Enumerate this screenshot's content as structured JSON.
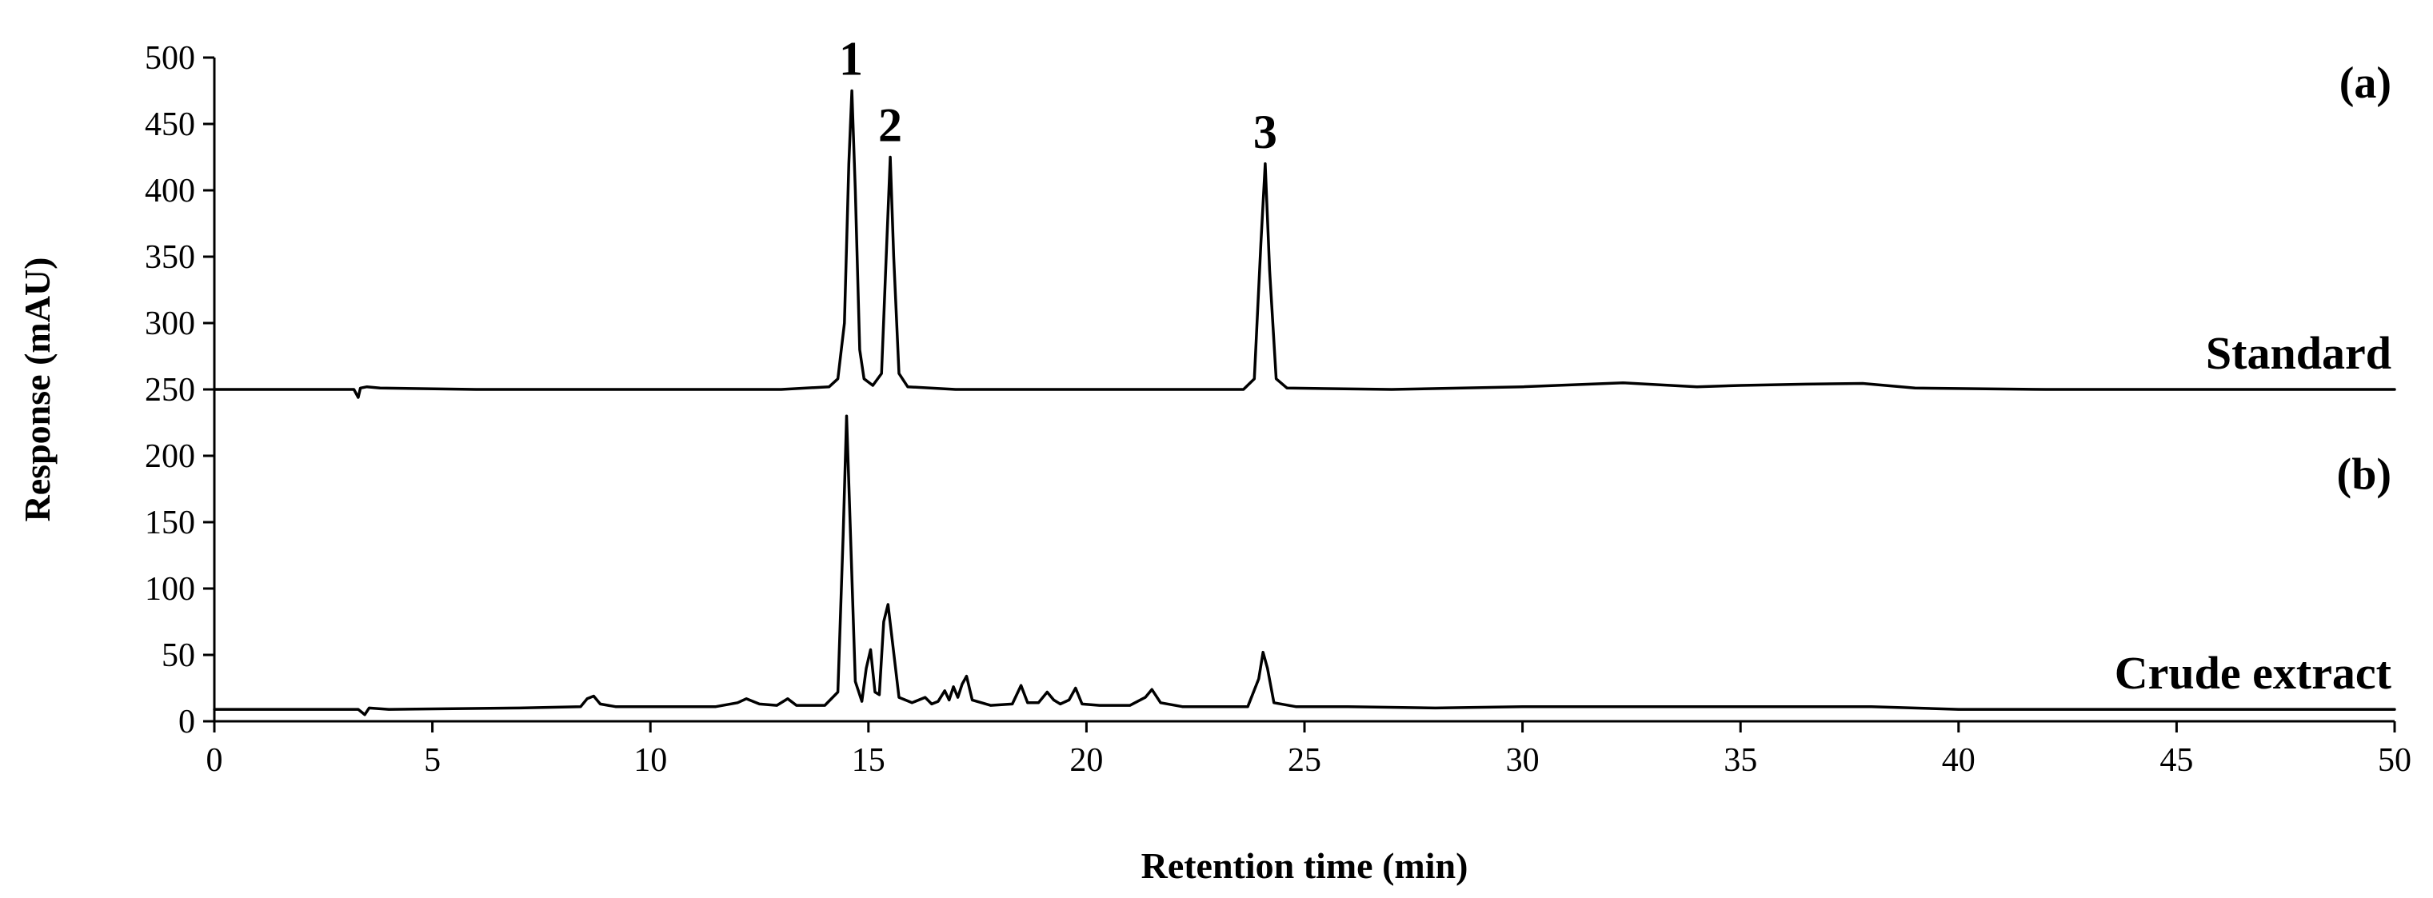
{
  "chart_data": {
    "type": "line",
    "xlabel": "Retention time (min)",
    "ylabel": "Response (mAU)",
    "xlim": [
      0,
      50
    ],
    "ylim": [
      0,
      500
    ],
    "x_ticks": [
      0,
      5,
      10,
      15,
      20,
      25,
      30,
      35,
      40,
      45,
      50
    ],
    "y_ticks": [
      0,
      50,
      100,
      150,
      200,
      250,
      300,
      350,
      400,
      450,
      500
    ],
    "grid": false,
    "legend": "none",
    "panels": [
      {
        "label": "(a)",
        "name": "Standard"
      },
      {
        "label": "(b)",
        "name": "Crude extract"
      }
    ],
    "peak_labels": [
      {
        "text": "1",
        "x": 14.6,
        "y": 475
      },
      {
        "text": "2",
        "x": 15.5,
        "y": 425
      },
      {
        "text": "3",
        "x": 24.1,
        "y": 420
      }
    ],
    "series": [
      {
        "name": "Standard",
        "baseline": 250,
        "points": [
          [
            0,
            250
          ],
          [
            3.2,
            250
          ],
          [
            3.3,
            244
          ],
          [
            3.35,
            251
          ],
          [
            3.5,
            252
          ],
          [
            3.8,
            251
          ],
          [
            6,
            250
          ],
          [
            10,
            250
          ],
          [
            13,
            250
          ],
          [
            14.1,
            252
          ],
          [
            14.3,
            258
          ],
          [
            14.45,
            300
          ],
          [
            14.55,
            420
          ],
          [
            14.62,
            475
          ],
          [
            14.7,
            400
          ],
          [
            14.8,
            280
          ],
          [
            14.9,
            258
          ],
          [
            15.1,
            253
          ],
          [
            15.3,
            262
          ],
          [
            15.42,
            360
          ],
          [
            15.5,
            425
          ],
          [
            15.58,
            350
          ],
          [
            15.7,
            262
          ],
          [
            15.9,
            252
          ],
          [
            17,
            250
          ],
          [
            23.6,
            250
          ],
          [
            23.85,
            258
          ],
          [
            24.0,
            360
          ],
          [
            24.1,
            420
          ],
          [
            24.2,
            340
          ],
          [
            24.35,
            258
          ],
          [
            24.6,
            251
          ],
          [
            27,
            250
          ],
          [
            30,
            252
          ],
          [
            32.3,
            255
          ],
          [
            34,
            252
          ],
          [
            35,
            253
          ],
          [
            36.5,
            254
          ],
          [
            37.8,
            254.5
          ],
          [
            39,
            251
          ],
          [
            42,
            250
          ],
          [
            46,
            250
          ],
          [
            50,
            250
          ]
        ]
      },
      {
        "name": "Crude extract",
        "baseline": 9,
        "points": [
          [
            0,
            9
          ],
          [
            3.3,
            9
          ],
          [
            3.45,
            5
          ],
          [
            3.55,
            10
          ],
          [
            4,
            9
          ],
          [
            7,
            10
          ],
          [
            8.4,
            11
          ],
          [
            8.55,
            17
          ],
          [
            8.7,
            19
          ],
          [
            8.85,
            13
          ],
          [
            9.2,
            11
          ],
          [
            11.5,
            11
          ],
          [
            12.0,
            14
          ],
          [
            12.2,
            17
          ],
          [
            12.5,
            13
          ],
          [
            12.9,
            12
          ],
          [
            13.15,
            17
          ],
          [
            13.35,
            12
          ],
          [
            14.0,
            12
          ],
          [
            14.3,
            22
          ],
          [
            14.42,
            140
          ],
          [
            14.5,
            230
          ],
          [
            14.58,
            150
          ],
          [
            14.7,
            30
          ],
          [
            14.85,
            15
          ],
          [
            14.95,
            40
          ],
          [
            15.05,
            54
          ],
          [
            15.15,
            22
          ],
          [
            15.25,
            20
          ],
          [
            15.35,
            75
          ],
          [
            15.45,
            88
          ],
          [
            15.55,
            60
          ],
          [
            15.7,
            18
          ],
          [
            16.0,
            14
          ],
          [
            16.3,
            18
          ],
          [
            16.45,
            13
          ],
          [
            16.6,
            15
          ],
          [
            16.75,
            23
          ],
          [
            16.85,
            16
          ],
          [
            16.95,
            26
          ],
          [
            17.05,
            18
          ],
          [
            17.15,
            28
          ],
          [
            17.25,
            34
          ],
          [
            17.38,
            16
          ],
          [
            17.8,
            12
          ],
          [
            18.3,
            13
          ],
          [
            18.5,
            27
          ],
          [
            18.65,
            14
          ],
          [
            18.9,
            14
          ],
          [
            19.1,
            22
          ],
          [
            19.25,
            16
          ],
          [
            19.4,
            13
          ],
          [
            19.6,
            16
          ],
          [
            19.75,
            25
          ],
          [
            19.9,
            13
          ],
          [
            20.3,
            12
          ],
          [
            21.0,
            12
          ],
          [
            21.35,
            18
          ],
          [
            21.5,
            24
          ],
          [
            21.7,
            14
          ],
          [
            22.2,
            11
          ],
          [
            23.7,
            11
          ],
          [
            23.95,
            32
          ],
          [
            24.05,
            52
          ],
          [
            24.15,
            40
          ],
          [
            24.3,
            14
          ],
          [
            24.8,
            11
          ],
          [
            26,
            11
          ],
          [
            28,
            10
          ],
          [
            30,
            11
          ],
          [
            35,
            11
          ],
          [
            38,
            11
          ],
          [
            40,
            9
          ],
          [
            44,
            9
          ],
          [
            50,
            9
          ]
        ]
      }
    ]
  }
}
